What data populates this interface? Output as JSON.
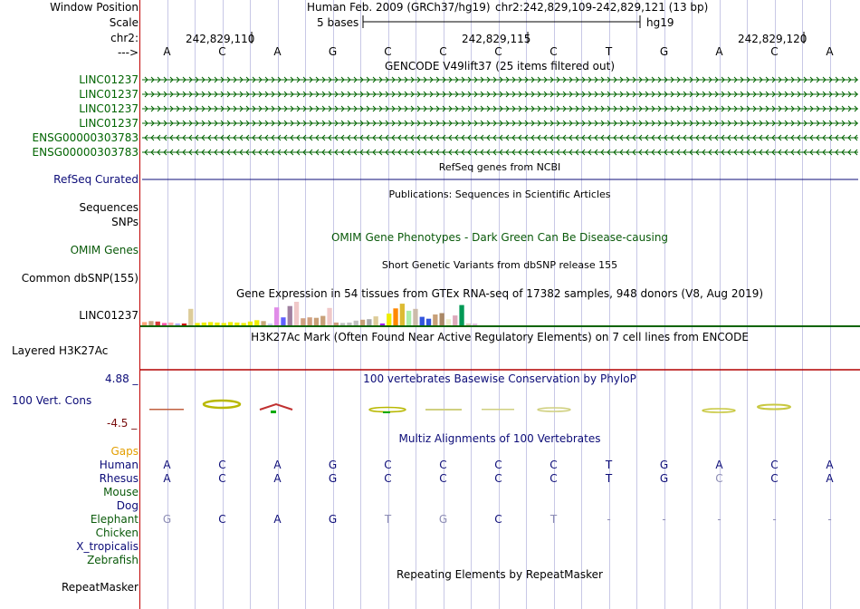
{
  "colors": {
    "grid": "#c8c8e6",
    "sidebar_border": "#c00000",
    "gene_green": "#006400",
    "refseq_blue": "#0c0c78",
    "nav_blue": "#0c0c78",
    "omim_green": "#0a5a0a",
    "phylop_pos": "#0c0c78",
    "phylop_neg": "#780c0c",
    "gaps_orange": "#e39e00",
    "h3k27ac_red": "#b40000",
    "gtex_line": "#0a6400",
    "faded_base": "#8c8cb4"
  },
  "header": {
    "window_position_label": "Window Position",
    "scale_label": "Scale",
    "chrom_label": "chr2:",
    "strand_label": "--->",
    "assembly_text": "Human Feb. 2009 (GRCh37/hg19)",
    "position_text": "chr2:242,829,109-242,829,121 (13 bp)",
    "scale_text": "5 bases",
    "db_text": "hg19",
    "ticks": [
      "242,829,110",
      "242,829,115",
      "242,829,120"
    ],
    "bases": [
      "A",
      "C",
      "A",
      "G",
      "C",
      "C",
      "C",
      "C",
      "T",
      "G",
      "A",
      "C",
      "A"
    ]
  },
  "tracks": {
    "gencode": {
      "title": "GENCODE V49lift37 (25 items filtered out)",
      "items": [
        {
          "label": "LINC01237",
          "strand": "+"
        },
        {
          "label": "LINC01237",
          "strand": "+"
        },
        {
          "label": "LINC01237",
          "strand": "+"
        },
        {
          "label": "LINC01237",
          "strand": "+"
        },
        {
          "label": "ENSG00000303783",
          "strand": "-"
        },
        {
          "label": "ENSG00000303783",
          "strand": "-"
        }
      ]
    },
    "refseq": {
      "title": "RefSeq genes from NCBI",
      "label": "RefSeq Curated"
    },
    "publications": {
      "title": "Publications: Sequences in Scientific Articles",
      "label": "Sequences"
    },
    "snps_label": "SNPs",
    "omim": {
      "title": "OMIM Gene Phenotypes - Dark Green Can Be Disease-causing",
      "label": "OMIM Genes"
    },
    "dbsnp": {
      "title": "Short Genetic Variants from dbSNP release 155",
      "label": "Common dbSNP(155)"
    },
    "gtex": {
      "title": "Gene Expression in 54 tissues from GTEx RNA-seq of 17382 samples, 948 donors (V8, Aug 2019)",
      "label": "LINC01237",
      "tissues": [
        {
          "color": "#ffa57a",
          "value": 0.14
        },
        {
          "color": "#c9a17c",
          "value": 0.18
        },
        {
          "color": "#d73a3a",
          "value": 0.16
        },
        {
          "color": "#ff55aa",
          "value": 0.1
        },
        {
          "color": "#ffaaaa",
          "value": 0.12
        },
        {
          "color": "#aaaaff",
          "value": 0.08
        },
        {
          "color": "#cc0000",
          "value": 0.06
        },
        {
          "color": "#ddcc99",
          "value": 0.7
        },
        {
          "color": "#eeee00",
          "value": 0.1
        },
        {
          "color": "#eeee00",
          "value": 0.12
        },
        {
          "color": "#eeee00",
          "value": 0.14
        },
        {
          "color": "#eeee00",
          "value": 0.12
        },
        {
          "color": "#eeee00",
          "value": 0.1
        },
        {
          "color": "#eeee00",
          "value": 0.14
        },
        {
          "color": "#eeee00",
          "value": 0.12
        },
        {
          "color": "#eeee00",
          "value": 0.1
        },
        {
          "color": "#eeee00",
          "value": 0.16
        },
        {
          "color": "#eeee00",
          "value": 0.22
        },
        {
          "color": "#c8a878",
          "value": 0.18
        },
        {
          "color": "#ccccff",
          "value": 0.06
        },
        {
          "color": "#e08ce8",
          "value": 0.76
        },
        {
          "color": "#6060ff",
          "value": 0.34
        },
        {
          "color": "#a080a0",
          "value": 0.82
        },
        {
          "color": "#f0c8c8",
          "value": 1.0
        },
        {
          "color": "#d0a080",
          "value": 0.3
        },
        {
          "color": "#d0a080",
          "value": 0.34
        },
        {
          "color": "#c8a078",
          "value": 0.32
        },
        {
          "color": "#c8a078",
          "value": 0.4
        },
        {
          "color": "#f0c8c8",
          "value": 0.74
        },
        {
          "color": "#d0a080",
          "value": 0.12
        },
        {
          "color": "#c0c0c0",
          "value": 0.1
        },
        {
          "color": "#c0c0c0",
          "value": 0.12
        },
        {
          "color": "#c0c0c0",
          "value": 0.2
        },
        {
          "color": "#c8a078",
          "value": 0.24
        },
        {
          "color": "#aaaaaa",
          "value": 0.26
        },
        {
          "color": "#ddcc99",
          "value": 0.38
        },
        {
          "color": "#a020f0",
          "value": 0.08
        },
        {
          "color": "#eeee00",
          "value": 0.5
        },
        {
          "color": "#ff8800",
          "value": 0.72
        },
        {
          "color": "#ddbb33",
          "value": 0.92
        },
        {
          "color": "#aaeeaa",
          "value": 0.62
        },
        {
          "color": "#ccbbaa",
          "value": 0.7
        },
        {
          "color": "#3355dd",
          "value": 0.36
        },
        {
          "color": "#3355dd",
          "value": 0.28
        },
        {
          "color": "#c8a078",
          "value": 0.46
        },
        {
          "color": "#aa8866",
          "value": 0.52
        },
        {
          "color": "#eeeecc",
          "value": 0.26
        },
        {
          "color": "#ddaabb",
          "value": 0.42
        },
        {
          "color": "#009955",
          "value": 0.86
        },
        {
          "color": "#ddccbb",
          "value": 0.08
        },
        {
          "color": "#e0c0e0",
          "value": 0.06
        }
      ]
    },
    "h3k27ac": {
      "title": "H3K27Ac Mark (Often Found Near Active Regulatory Elements) on 7 cell lines from ENCODE",
      "label": "Layered H3K27Ac"
    },
    "phylop": {
      "title": "100 vertebrates Basewise Conservation by PhyloP",
      "label": "100 Vert. Cons",
      "max_text": "4.88 _",
      "min_text": "-4.5 _",
      "range": [
        -4.5,
        4.88
      ]
    },
    "multiz": {
      "title": "Multiz Alignments of 100 Vertebrates",
      "gaps_label": "Gaps",
      "species": [
        {
          "name": "Human",
          "color": "#0c0c78",
          "bases": [
            "A",
            "C",
            "A",
            "G",
            "C",
            "C",
            "C",
            "C",
            "T",
            "G",
            "A",
            "C",
            "A"
          ],
          "faded": []
        },
        {
          "name": "Rhesus",
          "color": "#0c0c78",
          "bases": [
            "A",
            "C",
            "A",
            "G",
            "C",
            "C",
            "C",
            "C",
            "T",
            "G",
            "C",
            "C",
            "A"
          ],
          "faded": [
            10
          ]
        },
        {
          "name": "Mouse",
          "color": "#0a5a0a",
          "bases": [],
          "faded": []
        },
        {
          "name": "Dog",
          "color": "#0c0c78",
          "bases": [],
          "faded": []
        },
        {
          "name": "Elephant",
          "color": "#0a5a0a",
          "bases": [
            "G",
            "C",
            "A",
            "G",
            "T",
            "G",
            "C",
            "T",
            "-",
            "-",
            "-",
            "-",
            "-"
          ],
          "faded": [
            0,
            4,
            5,
            7,
            8,
            9,
            10,
            11,
            12
          ]
        },
        {
          "name": "Chicken",
          "color": "#0a5a0a",
          "bases": [],
          "faded": []
        },
        {
          "name": "X_tropicalis",
          "color": "#0c0c78",
          "bases": [],
          "faded": []
        },
        {
          "name": "Zebrafish",
          "color": "#0a5a0a",
          "bases": [],
          "faded": []
        }
      ]
    },
    "repeatmasker": {
      "title": "Repeating Elements by RepeatMasker",
      "label": "RepeatMasker"
    }
  }
}
